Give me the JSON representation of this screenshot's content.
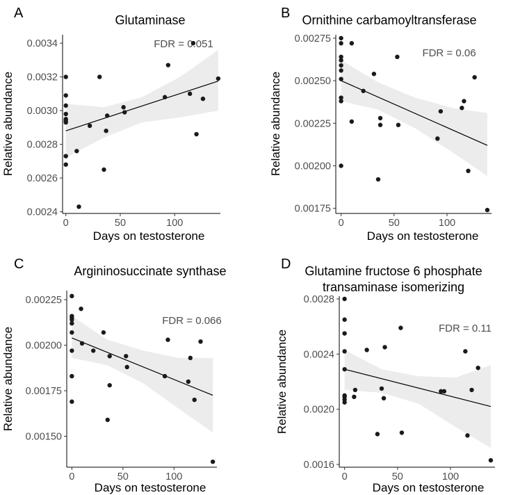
{
  "chart_data": [
    {
      "type": "scatter",
      "panel": "A",
      "title_lines": [
        "Glutaminase"
      ],
      "xlabel": "Days on testosterone",
      "ylabel": "Relative abundance",
      "fdr": "FDR = 0.051",
      "xlim": [
        -3,
        142
      ],
      "ylim": [
        0.00239,
        0.00345
      ],
      "xticks": [
        0,
        50,
        100
      ],
      "xtick_labels": [
        "0",
        "50",
        "100"
      ],
      "yticks": [
        0.0024,
        0.0026,
        0.0028,
        0.003,
        0.0032,
        0.0034
      ],
      "ytick_labels": [
        "0.0024",
        "0.0026",
        "0.0028",
        "0.0030",
        "0.0032",
        "0.0034"
      ],
      "fit": {
        "x": [
          0,
          140
        ],
        "y": [
          0.00288,
          0.003175
        ]
      },
      "ci": [
        {
          "x": 0,
          "lo": 0.00272,
          "hi": 0.00304
        },
        {
          "x": 35,
          "lo": 0.00284,
          "hi": 0.00302
        },
        {
          "x": 70,
          "lo": 0.00293,
          "hi": 0.00308
        },
        {
          "x": 105,
          "lo": 0.00296,
          "hi": 0.0032
        },
        {
          "x": 140,
          "lo": 0.003,
          "hi": 0.00336
        }
      ],
      "points": [
        {
          "x": 0,
          "y": 0.0032
        },
        {
          "x": 0,
          "y": 0.00309
        },
        {
          "x": 0,
          "y": 0.00303
        },
        {
          "x": 0,
          "y": 0.00298
        },
        {
          "x": 0,
          "y": 0.00295
        },
        {
          "x": 0,
          "y": 0.00294
        },
        {
          "x": 0,
          "y": 0.00293
        },
        {
          "x": 0,
          "y": 0.00273
        },
        {
          "x": 0,
          "y": 0.00268
        },
        {
          "x": 10,
          "y": 0.00276
        },
        {
          "x": 12,
          "y": 0.00243
        },
        {
          "x": 22,
          "y": 0.00291
        },
        {
          "x": 31,
          "y": 0.0032
        },
        {
          "x": 35,
          "y": 0.00265
        },
        {
          "x": 37,
          "y": 0.00288
        },
        {
          "x": 38,
          "y": 0.00297
        },
        {
          "x": 53,
          "y": 0.00302
        },
        {
          "x": 54,
          "y": 0.00299
        },
        {
          "x": 91,
          "y": 0.00308
        },
        {
          "x": 94,
          "y": 0.00327
        },
        {
          "x": 114,
          "y": 0.0031
        },
        {
          "x": 117,
          "y": 0.0034
        },
        {
          "x": 120,
          "y": 0.00286
        },
        {
          "x": 126,
          "y": 0.00307
        },
        {
          "x": 140,
          "y": 0.00319
        }
      ]
    },
    {
      "type": "scatter",
      "panel": "B",
      "title_lines": [
        "Ornithine carbamoyltransferase"
      ],
      "xlabel": "Days on testosterone",
      "ylabel": "Relative abundance",
      "fdr": "FDR = 0.06",
      "xlim": [
        -5,
        142
      ],
      "ylim": [
        0.00172,
        0.00277
      ],
      "xticks": [
        0,
        50,
        100
      ],
      "xtick_labels": [
        "0",
        "50",
        "100"
      ],
      "yticks": [
        0.00175,
        0.002,
        0.00225,
        0.0025,
        0.00275
      ],
      "ytick_labels": [
        "0.00175",
        "0.00200",
        "0.00225",
        "0.00250",
        "0.00275"
      ],
      "fit": {
        "x": [
          0,
          138
        ],
        "y": [
          0.0025,
          0.00212
        ]
      },
      "ci": [
        {
          "x": 0,
          "lo": 0.00238,
          "hi": 0.00262
        },
        {
          "x": 35,
          "lo": 0.00233,
          "hi": 0.00249
        },
        {
          "x": 70,
          "lo": 0.00222,
          "hi": 0.0024
        },
        {
          "x": 105,
          "lo": 0.00208,
          "hi": 0.00234
        },
        {
          "x": 138,
          "lo": 0.00194,
          "hi": 0.00231
        }
      ],
      "points": [
        {
          "x": 0,
          "y": 0.00275
        },
        {
          "x": 0,
          "y": 0.00272
        },
        {
          "x": 0,
          "y": 0.00264
        },
        {
          "x": 0,
          "y": 0.00262
        },
        {
          "x": 0,
          "y": 0.00259
        },
        {
          "x": 0,
          "y": 0.00256
        },
        {
          "x": 0,
          "y": 0.00251
        },
        {
          "x": 0,
          "y": 0.0024
        },
        {
          "x": 0,
          "y": 0.00238
        },
        {
          "x": 0,
          "y": 0.002
        },
        {
          "x": 10,
          "y": 0.00272
        },
        {
          "x": 10,
          "y": 0.00226
        },
        {
          "x": 21,
          "y": 0.00244
        },
        {
          "x": 31,
          "y": 0.00254
        },
        {
          "x": 35,
          "y": 0.00192
        },
        {
          "x": 37,
          "y": 0.00228
        },
        {
          "x": 37,
          "y": 0.00224
        },
        {
          "x": 53,
          "y": 0.00264
        },
        {
          "x": 54,
          "y": 0.00224
        },
        {
          "x": 91,
          "y": 0.00216
        },
        {
          "x": 94,
          "y": 0.00232
        },
        {
          "x": 114,
          "y": 0.00234
        },
        {
          "x": 116,
          "y": 0.00238
        },
        {
          "x": 120,
          "y": 0.00197
        },
        {
          "x": 126,
          "y": 0.00252
        },
        {
          "x": 138,
          "y": 0.00174
        }
      ]
    },
    {
      "type": "scatter",
      "panel": "C",
      "title_lines": [
        "Argininosuccinate synthase"
      ],
      "xlabel": "Days on testosterone",
      "ylabel": "Relative abundance",
      "fdr": "FDR = 0.066",
      "xlim": [
        -5,
        142
      ],
      "ylim": [
        0.00133,
        0.0023
      ],
      "xticks": [
        0,
        50,
        100
      ],
      "xtick_labels": [
        "0",
        "50",
        "100"
      ],
      "yticks": [
        0.0015,
        0.00175,
        0.002,
        0.00225
      ],
      "ytick_labels": [
        "0.00150",
        "0.00175",
        "0.00200",
        "0.00225"
      ],
      "fit": {
        "x": [
          0,
          138
        ],
        "y": [
          0.00204,
          0.001725
        ]
      },
      "ci": [
        {
          "x": 0,
          "lo": 0.00193,
          "hi": 0.00216
        },
        {
          "x": 35,
          "lo": 0.00189,
          "hi": 0.00203
        },
        {
          "x": 70,
          "lo": 0.00179,
          "hi": 0.00197
        },
        {
          "x": 105,
          "lo": 0.00165,
          "hi": 0.00193
        },
        {
          "x": 138,
          "lo": 0.00152,
          "hi": 0.00193
        }
      ],
      "points": [
        {
          "x": 0,
          "y": 0.00227
        },
        {
          "x": 0,
          "y": 0.00216
        },
        {
          "x": 0,
          "y": 0.00215
        },
        {
          "x": 0,
          "y": 0.00214
        },
        {
          "x": 0,
          "y": 0.00212
        },
        {
          "x": 0,
          "y": 0.00207
        },
        {
          "x": 0,
          "y": 0.00197
        },
        {
          "x": 0,
          "y": 0.00183
        },
        {
          "x": 0,
          "y": 0.00169
        },
        {
          "x": 9,
          "y": 0.0022
        },
        {
          "x": 10,
          "y": 0.00201
        },
        {
          "x": 21,
          "y": 0.00197
        },
        {
          "x": 31,
          "y": 0.00207
        },
        {
          "x": 35,
          "y": 0.00159
        },
        {
          "x": 37,
          "y": 0.00178
        },
        {
          "x": 37,
          "y": 0.00194
        },
        {
          "x": 53,
          "y": 0.00194
        },
        {
          "x": 54,
          "y": 0.00188
        },
        {
          "x": 91,
          "y": 0.00183
        },
        {
          "x": 94,
          "y": 0.00203
        },
        {
          "x": 114,
          "y": 0.0018
        },
        {
          "x": 116,
          "y": 0.00193
        },
        {
          "x": 120,
          "y": 0.0017
        },
        {
          "x": 126,
          "y": 0.00202
        },
        {
          "x": 138,
          "y": 0.00136
        }
      ]
    },
    {
      "type": "scatter",
      "panel": "D",
      "title_lines": [
        "Glutamine fructose 6 phosphate",
        "transaminase isomerizing"
      ],
      "xlabel": "Days on testosterone",
      "ylabel": "Relative abundance",
      "fdr": "FDR = 0.11",
      "xlim": [
        -5,
        142
      ],
      "ylim": [
        0.00158,
        0.00282
      ],
      "xticks": [
        0,
        50,
        100
      ],
      "xtick_labels": [
        "0",
        "50",
        "100"
      ],
      "yticks": [
        0.0016,
        0.002,
        0.0024,
        0.0028
      ],
      "ytick_labels": [
        "0.0016",
        "0.0020",
        "0.0024",
        "0.0028"
      ],
      "fit": {
        "x": [
          0,
          138
        ],
        "y": [
          0.00229,
          0.00202
        ]
      },
      "ci": [
        {
          "x": 0,
          "lo": 0.00214,
          "hi": 0.00243
        },
        {
          "x": 35,
          "lo": 0.00212,
          "hi": 0.00229
        },
        {
          "x": 70,
          "lo": 0.00204,
          "hi": 0.00224
        },
        {
          "x": 105,
          "lo": 0.00187,
          "hi": 0.00223
        },
        {
          "x": 138,
          "lo": 0.00172,
          "hi": 0.00232
        }
      ],
      "points": [
        {
          "x": 0,
          "y": 0.0028
        },
        {
          "x": 0,
          "y": 0.00265
        },
        {
          "x": 0,
          "y": 0.00255
        },
        {
          "x": 0,
          "y": 0.00242
        },
        {
          "x": 0,
          "y": 0.00229
        },
        {
          "x": 0,
          "y": 0.0021
        },
        {
          "x": 0,
          "y": 0.00209
        },
        {
          "x": 0,
          "y": 0.00207
        },
        {
          "x": 0,
          "y": 0.00205
        },
        {
          "x": 9,
          "y": 0.00209
        },
        {
          "x": 10,
          "y": 0.00214
        },
        {
          "x": 21,
          "y": 0.00243
        },
        {
          "x": 31,
          "y": 0.00182
        },
        {
          "x": 35,
          "y": 0.00215
        },
        {
          "x": 37,
          "y": 0.00208
        },
        {
          "x": 38,
          "y": 0.00245
        },
        {
          "x": 53,
          "y": 0.00259
        },
        {
          "x": 54,
          "y": 0.00183
        },
        {
          "x": 91,
          "y": 0.00213
        },
        {
          "x": 94,
          "y": 0.00213
        },
        {
          "x": 114,
          "y": 0.00242
        },
        {
          "x": 116,
          "y": 0.00181
        },
        {
          "x": 120,
          "y": 0.00214
        },
        {
          "x": 126,
          "y": 0.0023
        },
        {
          "x": 138,
          "y": 0.00163
        }
      ]
    }
  ]
}
